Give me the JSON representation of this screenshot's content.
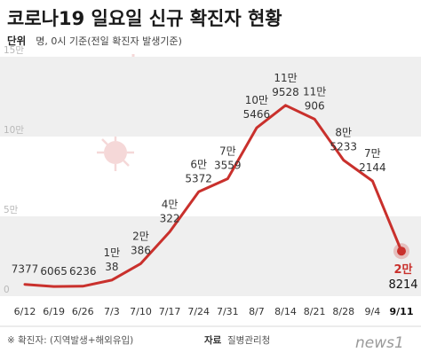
{
  "title": "코로나19 일요일 신규 확진자 현황",
  "unit": {
    "key": "단위",
    "text": "명, 0시 기준(전일 확진자 발생기준)"
  },
  "footer": {
    "note": "※ 확진자: (지역발생+해외유입)",
    "source_key": "자료",
    "source": "질병관리청"
  },
  "logo": "news1",
  "colors": {
    "line": "#c9302c",
    "band": "#efefef",
    "accent": "#c9302c"
  },
  "chart_data": {
    "type": "line",
    "ylim": [
      0,
      150000
    ],
    "y_ticks": [
      {
        "value": 0,
        "label": "0"
      },
      {
        "value": 50000,
        "label": "5만"
      },
      {
        "value": 100000,
        "label": "10만"
      },
      {
        "value": 150000,
        "label": "15만"
      }
    ],
    "grid": false,
    "title": "코로나19 일요일 신규 확진자 현황",
    "categories": [
      "6/12",
      "6/19",
      "6/26",
      "7/3",
      "7/10",
      "7/17",
      "7/24",
      "7/31",
      "8/7",
      "8/14",
      "8/21",
      "8/28",
      "9/4",
      "9/11"
    ],
    "values": [
      7377,
      6065,
      6236,
      10038,
      20386,
      40322,
      65372,
      73559,
      105466,
      119528,
      110906,
      85233,
      72144,
      28214
    ],
    "labels": [
      [
        "7377"
      ],
      [
        "6065"
      ],
      [
        "6236"
      ],
      [
        "1만",
        "38"
      ],
      [
        "2만",
        "386"
      ],
      [
        "4만",
        "322"
      ],
      [
        "6만",
        "5372"
      ],
      [
        "7만",
        "3559"
      ],
      [
        "10만",
        "5466"
      ],
      [
        "11만",
        "9528"
      ],
      [
        "11만",
        "906"
      ],
      [
        "8만",
        "5233"
      ],
      [
        "7만",
        "2144"
      ],
      [
        "2만",
        "8214"
      ]
    ]
  }
}
